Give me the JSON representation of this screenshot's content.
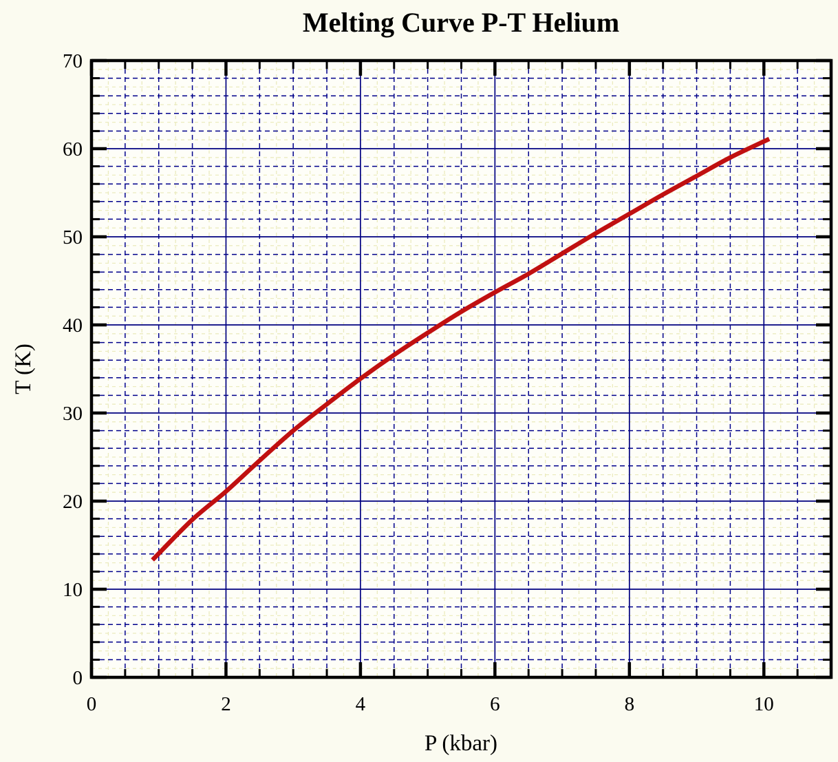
{
  "chart_data": {
    "type": "line",
    "title": "Melting Curve P-T Helium",
    "xlabel": "P (kbar)",
    "ylabel": "T (K)",
    "xlim": [
      0,
      11
    ],
    "ylim": [
      0,
      70
    ],
    "x_major_ticks": [
      0,
      2,
      4,
      6,
      8,
      10
    ],
    "x_major_tick_labels": [
      "0",
      "2",
      "4",
      "6",
      "8",
      "10"
    ],
    "y_major_ticks": [
      0,
      10,
      20,
      30,
      40,
      50,
      60,
      70
    ],
    "y_major_tick_labels": [
      "0",
      "10",
      "20",
      "30",
      "40",
      "50",
      "60",
      "70"
    ],
    "x_minor_step": 0.5,
    "y_minor_step": 2,
    "x_subminor_step": 0.25,
    "y_subminor_step": 1,
    "grid": {
      "major_solid": true,
      "minor_dashed": true,
      "subminor_dotted": true
    },
    "legend_position": "none",
    "colors": {
      "curve": "#C01010",
      "major_grid": "#000080",
      "minor_grid": "#00008B",
      "subminor_grid": "#EBEBBE",
      "frame": "#000000",
      "background": "#FBFBF0",
      "plot_background": "#FEFEF8"
    },
    "series": [
      {
        "name": "helium-melting-curve",
        "color": "#C01010",
        "points": [
          [
            0.93,
            13.5
          ],
          [
            1.5,
            17.9
          ],
          [
            2.0,
            21.1
          ],
          [
            2.5,
            24.6
          ],
          [
            3.0,
            28.0
          ],
          [
            3.5,
            31.0
          ],
          [
            4.0,
            33.9
          ],
          [
            4.5,
            36.6
          ],
          [
            5.0,
            39.1
          ],
          [
            5.5,
            41.5
          ],
          [
            6.0,
            43.7
          ],
          [
            6.5,
            45.8
          ],
          [
            7.0,
            48.1
          ],
          [
            7.5,
            50.4
          ],
          [
            8.0,
            52.6
          ],
          [
            8.5,
            54.8
          ],
          [
            9.0,
            56.9
          ],
          [
            9.5,
            59.0
          ],
          [
            10.05,
            61.0
          ]
        ]
      }
    ]
  }
}
